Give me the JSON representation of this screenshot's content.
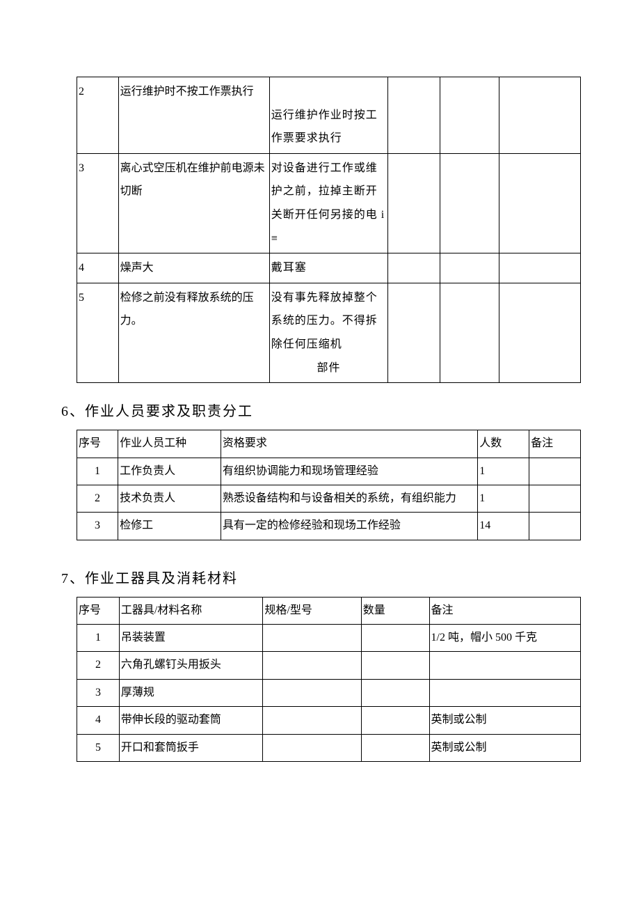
{
  "table1": {
    "rows": [
      {
        "no": "2",
        "c1": "运行维护时不按工作票执行",
        "c2": "运行维护作业时按工作票要求执行",
        "c3": "",
        "c4": "",
        "c5": ""
      },
      {
        "no": "3",
        "c1": "离心式空压机在维护前电源未切断",
        "c2": "对设备进行工作或维护之前，拉掉主断开关断开任何另接的电 i≡",
        "c3": "",
        "c4": "",
        "c5": ""
      },
      {
        "no": "4",
        "c1": "燥声大",
        "c2": "戴耳塞",
        "c3": "",
        "c4": "",
        "c5": ""
      },
      {
        "no": "5",
        "c1": "检修之前没有释放系统的压力。",
        "c2": "没有事先释放掉整个系统的压力。不得拆除任何压缩机",
        "c2_suffix": "部件",
        "c3": "",
        "c4": "",
        "c5": ""
      }
    ]
  },
  "section6": {
    "title": "6、作业人员要求及职责分工",
    "headers": {
      "h0": "序号",
      "h1": "作业人员工种",
      "h2": "资格要求",
      "h3": "人数",
      "h4": "备注"
    },
    "rows": [
      {
        "no": "1",
        "c1": "工作负责人",
        "c2": "有组织协调能力和现场管理经验",
        "c3": "1",
        "c4": ""
      },
      {
        "no": "2",
        "c1": "技术负责人",
        "c2": "熟悉设备结构和与设备相关的系统，有组织能力",
        "c3": "1",
        "c4": ""
      },
      {
        "no": "3",
        "c1": "检修工",
        "c2": "具有一定的检修经验和现场工作经验",
        "c3": "14",
        "c4": ""
      }
    ]
  },
  "section7": {
    "title": "7、作业工器具及消耗材料",
    "headers": {
      "h0": "序号",
      "h1": "工器具/材料名称",
      "h2": "规格/型号",
      "h3": "数量",
      "h4": "备注"
    },
    "rows": [
      {
        "no": "1",
        "c1": "吊装装置",
        "c2": "",
        "c3": "",
        "c4": "1/2 吨，帽小 500 千克"
      },
      {
        "no": "2",
        "c1": "六角孔螺钉头用扳头",
        "c2": "",
        "c3": "",
        "c4": ""
      },
      {
        "no": "3",
        "c1": "厚薄规",
        "c2": "",
        "c3": "",
        "c4": ""
      },
      {
        "no": "4",
        "c1": "带伸长段的驱动套筒",
        "c2": "",
        "c3": "",
        "c4": "英制或公制"
      },
      {
        "no": "5",
        "c1": "开口和套筒扳手",
        "c2": "",
        "c3": "",
        "c4": "英制或公制"
      }
    ]
  }
}
